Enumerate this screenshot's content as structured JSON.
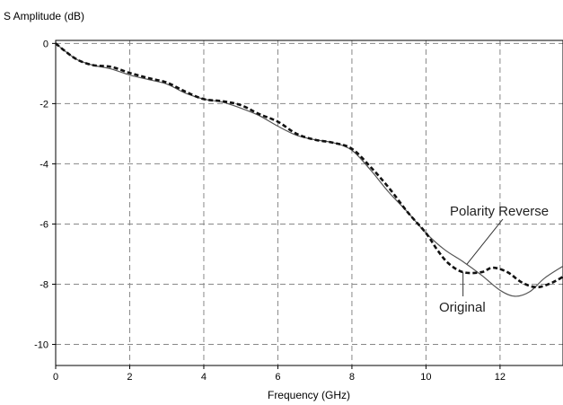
{
  "chart_data": {
    "type": "line",
    "title": "",
    "xlabel": "Frequency (GHz)",
    "ylabel": "S Amplitude (dB)",
    "xlim": [
      0,
      13.7
    ],
    "ylim": [
      -10.7,
      0.1
    ],
    "x_ticks": [
      0,
      2,
      4,
      6,
      8,
      10,
      12
    ],
    "y_ticks": [
      0,
      -2,
      -4,
      -6,
      -8,
      -10
    ],
    "x_tick_labels": [
      "0",
      "2",
      "4",
      "6",
      "8",
      "10",
      "12"
    ],
    "y_tick_labels": [
      "0",
      "-2",
      "-4",
      "-6",
      "-8",
      "-10"
    ],
    "grid": true,
    "series": [
      {
        "name": "Polarity Reverse",
        "style": "solid",
        "color": "#555555",
        "x": [
          0,
          0.3,
          0.6,
          1.0,
          1.5,
          2.0,
          2.5,
          3.0,
          3.5,
          4.0,
          4.5,
          5.0,
          5.5,
          6.0,
          6.5,
          7.0,
          7.5,
          8.0,
          8.5,
          9.0,
          9.5,
          10.0,
          10.5,
          11.0,
          11.5,
          12.0,
          12.4,
          12.8,
          13.2,
          13.7
        ],
        "y": [
          0,
          -0.3,
          -0.55,
          -0.72,
          -0.85,
          -1.05,
          -1.2,
          -1.35,
          -1.65,
          -1.85,
          -1.95,
          -2.15,
          -2.4,
          -2.75,
          -3.05,
          -3.2,
          -3.3,
          -3.55,
          -4.2,
          -4.95,
          -5.6,
          -6.3,
          -6.85,
          -7.25,
          -7.7,
          -8.2,
          -8.4,
          -8.25,
          -7.8,
          -7.4
        ]
      },
      {
        "name": "Original",
        "style": "dashed",
        "color": "#111111",
        "x": [
          0,
          0.3,
          0.6,
          1.0,
          1.5,
          2.0,
          2.5,
          3.0,
          3.5,
          4.0,
          4.5,
          5.0,
          5.5,
          6.0,
          6.5,
          7.0,
          7.5,
          8.0,
          8.5,
          9.0,
          9.5,
          10.0,
          10.3,
          10.6,
          11.0,
          11.5,
          11.8,
          12.2,
          12.6,
          13.0,
          13.4,
          13.7
        ],
        "y": [
          0,
          -0.3,
          -0.55,
          -0.72,
          -0.78,
          -0.98,
          -1.15,
          -1.3,
          -1.6,
          -1.85,
          -1.92,
          -2.05,
          -2.35,
          -2.6,
          -3.0,
          -3.2,
          -3.3,
          -3.5,
          -4.1,
          -4.8,
          -5.6,
          -6.3,
          -6.85,
          -7.3,
          -7.6,
          -7.6,
          -7.45,
          -7.6,
          -7.95,
          -8.1,
          -7.95,
          -7.75
        ]
      }
    ],
    "annotations": [
      {
        "text": "Polarity Reverse",
        "points_to_series": "Polarity Reverse",
        "at_x": 11.1
      },
      {
        "text": "Original",
        "points_to_series": "Original",
        "at_x": 11.0
      }
    ]
  }
}
